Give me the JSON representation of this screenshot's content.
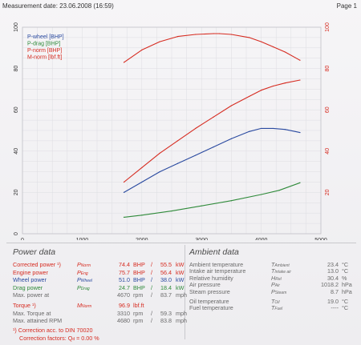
{
  "header": {
    "measurement_date": "Measurement date: 23.06.2008 (16:59)",
    "page": "Page 1"
  },
  "chart_data": {
    "type": "line",
    "xlabel": "n [rpm]",
    "xlim": [
      0,
      5000
    ],
    "x_ticks": [
      0,
      1000,
      2000,
      3000,
      4000,
      5000
    ],
    "left_ylim": [
      0,
      100
    ],
    "left_ticks": [
      0,
      20,
      40,
      60,
      80,
      100
    ],
    "right_ylim": [
      0,
      100
    ],
    "right_ticks": [
      20,
      40,
      60,
      80,
      100
    ],
    "grid": true,
    "legend_position": "top-left",
    "series": [
      {
        "name": "P-wheel [BHP]",
        "color": "#2a4aa0",
        "axis": "left",
        "x": [
          1700,
          2000,
          2300,
          2600,
          2900,
          3200,
          3500,
          3800,
          4000,
          4200,
          4400,
          4650
        ],
        "y": [
          20,
          25,
          30,
          34,
          38,
          42,
          46,
          49.5,
          51,
          51,
          50.5,
          49
        ]
      },
      {
        "name": "P-drag [BHP]",
        "color": "#2f8a3a",
        "axis": "left",
        "x": [
          1700,
          2000,
          2500,
          3000,
          3500,
          4000,
          4300,
          4650
        ],
        "y": [
          8,
          9,
          11,
          13.5,
          16,
          19,
          21,
          24.7
        ]
      },
      {
        "name": "P-norm [BHP]",
        "color": "#d62b20",
        "axis": "left",
        "x": [
          1700,
          2000,
          2300,
          2600,
          2900,
          3200,
          3500,
          3800,
          4000,
          4200,
          4400,
          4650
        ],
        "y": [
          25,
          32,
          39,
          45,
          51,
          56.5,
          62,
          66.5,
          69.5,
          71.5,
          73,
          74.4
        ]
      },
      {
        "name": "M-norm [lbf.ft]",
        "color": "#d62b20",
        "axis": "right",
        "x": [
          1700,
          2000,
          2300,
          2600,
          2900,
          3200,
          3300,
          3500,
          3800,
          4000,
          4200,
          4400,
          4650
        ],
        "y": [
          83,
          89,
          93,
          95.5,
          96.5,
          96.9,
          96.9,
          96.5,
          95,
          93,
          90.5,
          88,
          84
        ]
      }
    ]
  },
  "power": {
    "title": "Power data",
    "rows": [
      {
        "label": "Corrected power ¹)",
        "sym": "P",
        "sub": "Norm",
        "v1": "74.4",
        "u1": "BHP",
        "sep": "/",
        "v2": "55.5",
        "u2": "kW",
        "color": "red"
      },
      {
        "label": "Engine power",
        "sym": "P",
        "sub": "Eng",
        "v1": "75.7",
        "u1": "BHP",
        "sep": "/",
        "v2": "56.4",
        "u2": "kW",
        "color": "red"
      },
      {
        "label": "Wheel power",
        "sym": "P",
        "sub": "Wheel",
        "v1": "51.0",
        "u1": "BHP",
        "sep": "/",
        "v2": "38.0",
        "u2": "kW",
        "color": "blu"
      },
      {
        "label": "Drag power",
        "sym": "P",
        "sub": "Drag",
        "v1": "24.7",
        "u1": "BHP",
        "sep": "/",
        "v2": "18.4",
        "u2": "kW",
        "color": "grn"
      },
      {
        "label": "Max. power at",
        "sym": "",
        "sub": "",
        "v1": "4670",
        "u1": "rpm",
        "sep": "/",
        "v2": "83.7",
        "u2": "mph",
        "color": "gry"
      },
      {
        "label": "Torque ¹)",
        "sym": "M",
        "sub": "Norm",
        "v1": "96.9",
        "u1": "lbf.ft",
        "sep": "",
        "v2": "",
        "u2": "",
        "color": "red"
      },
      {
        "label": "Max. Torque at",
        "sym": "",
        "sub": "",
        "v1": "3310",
        "u1": "rpm",
        "sep": "/",
        "v2": "59.3",
        "u2": "mph",
        "color": "gry"
      },
      {
        "label": "Max. attained RPM",
        "sym": "",
        "sub": "",
        "v1": "4680",
        "u1": "rpm",
        "sep": "/",
        "v2": "83.8",
        "u2": "mph",
        "color": "gry"
      }
    ],
    "footnote1": "¹) Correction acc. to DIN 70020",
    "footnote2": "Correction factors: Q",
    "footnote2_sub": "d",
    "footnote2_val": "=   0.00 %"
  },
  "ambient": {
    "title": "Ambient data",
    "rows": [
      {
        "label": "Ambient temperature",
        "sym": "T",
        "sub": "Ambient",
        "val": "23.4",
        "unit": "°C"
      },
      {
        "label": "Intake air temperature",
        "sym": "T",
        "sub": "Intake air",
        "val": "13.0",
        "unit": "°C"
      },
      {
        "label": "Relative humidity",
        "sym": "H",
        "sub": "Rel",
        "val": "30.4",
        "unit": "%"
      },
      {
        "label": "Air pressure",
        "sym": "P",
        "sub": "Air",
        "val": "1018.2",
        "unit": "hPa"
      },
      {
        "label": "Steam pressure",
        "sym": "P",
        "sub": "Steam",
        "val": "8.7",
        "unit": "hPa"
      },
      {
        "label": "Oil temperature",
        "sym": "T",
        "sub": "Oil",
        "val": "19.0",
        "unit": "°C"
      },
      {
        "label": "Fuel temperature",
        "sym": "T",
        "sub": "Fuel",
        "val": "----",
        "unit": "°C"
      }
    ]
  }
}
